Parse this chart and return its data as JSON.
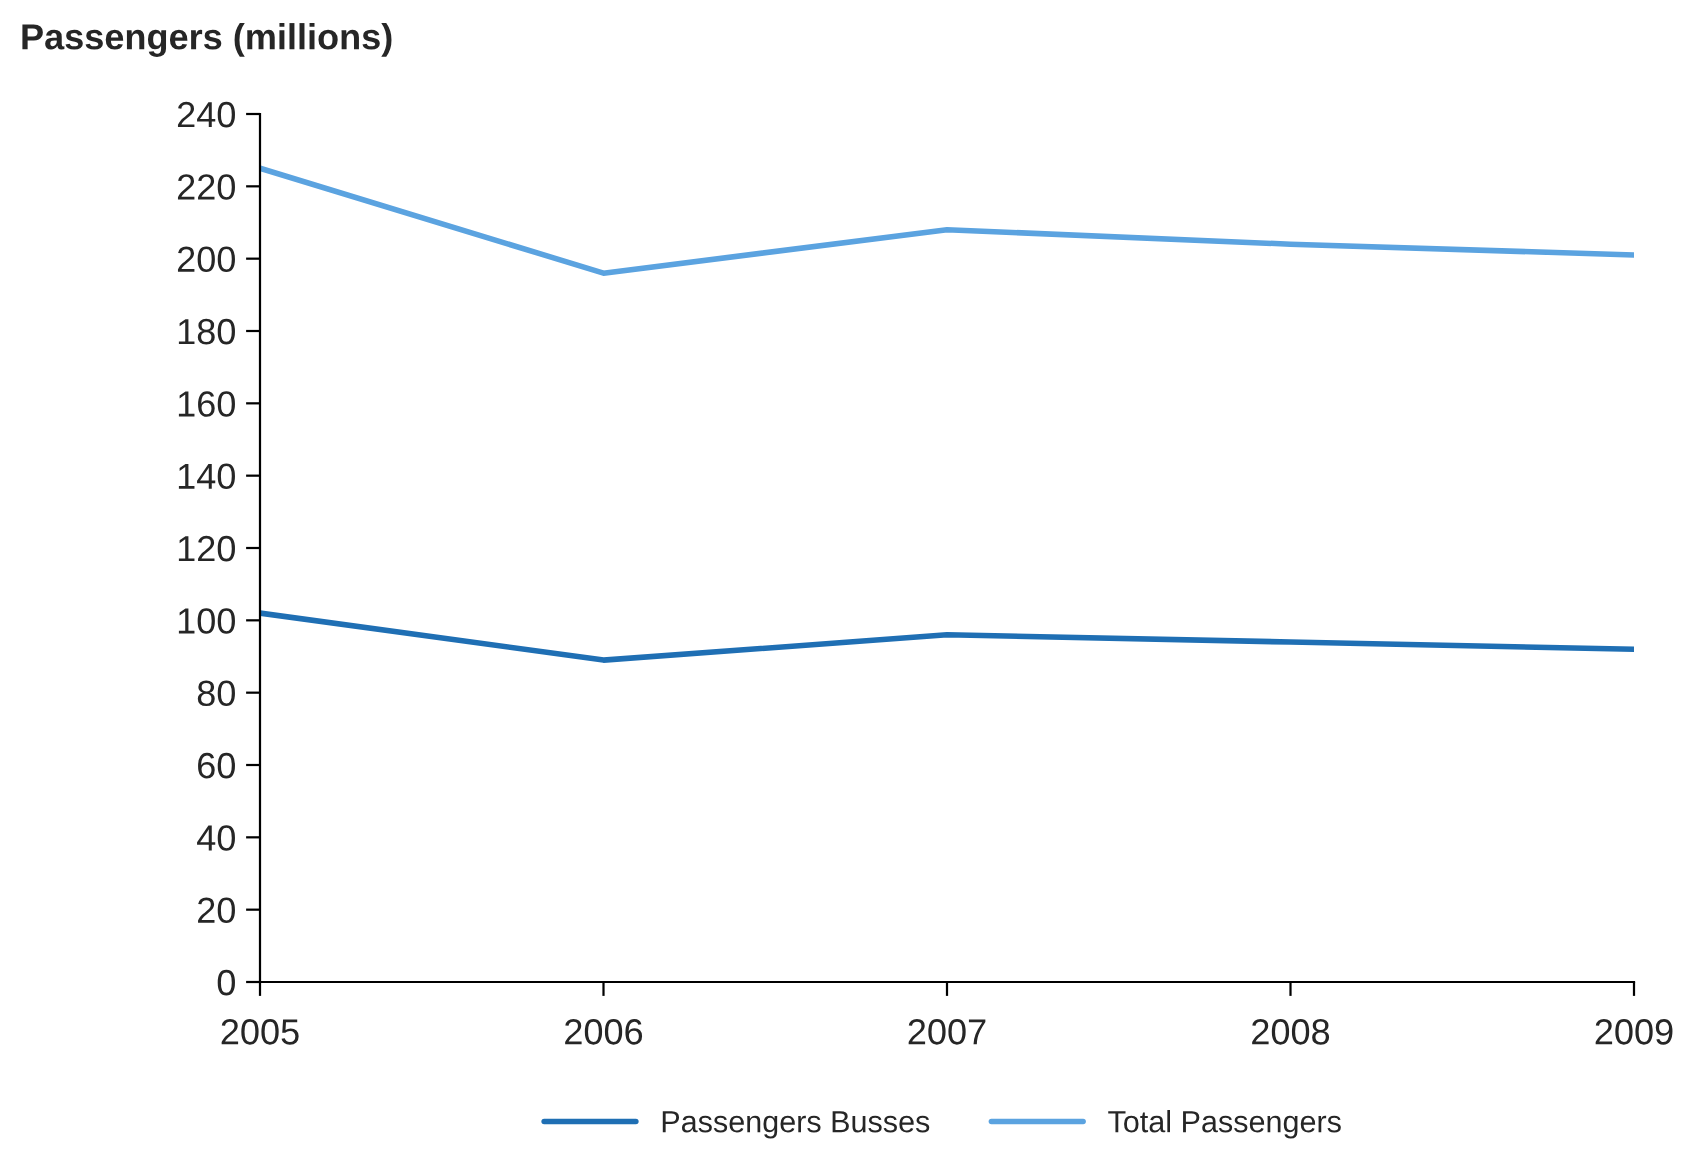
{
  "chart_data": {
    "type": "line",
    "ylabel": "Passengers (millions)",
    "x": [
      2005,
      2006,
      2007,
      2008,
      2009
    ],
    "series": [
      {
        "name": "Passengers Busses",
        "color": "#1f6fb4",
        "values": [
          102,
          89,
          96,
          94,
          92
        ]
      },
      {
        "name": "Total Passengers",
        "color": "#5ba3e0",
        "values": [
          225,
          196,
          208,
          204,
          201
        ]
      }
    ],
    "xlim": [
      2005,
      2009
    ],
    "xticks": [
      2005,
      2006,
      2007,
      2008,
      2009
    ],
    "ylim": [
      0,
      240
    ],
    "yticks": [
      0,
      20,
      40,
      60,
      80,
      100,
      120,
      140,
      160,
      180,
      200,
      220,
      240
    ],
    "grid": false,
    "legend": "bottom",
    "marker": "none",
    "line_style": "solid"
  }
}
